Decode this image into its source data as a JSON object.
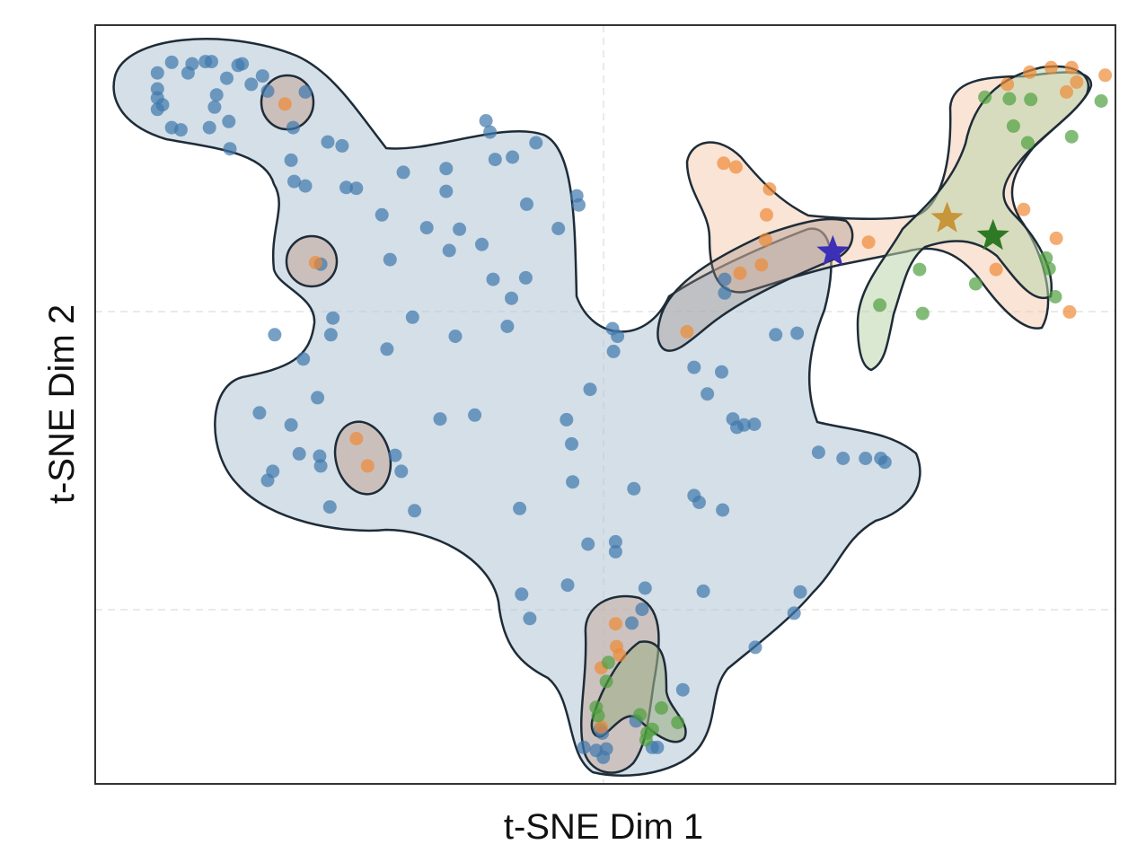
{
  "chart_data": {
    "type": "scatter",
    "title": "",
    "xlabel": "t-SNE Dim 1",
    "ylabel": "t-SNE Dim 2",
    "xlim": [
      0,
      100
    ],
    "ylim": [
      0,
      100
    ],
    "grid": true,
    "grid_style": "dashed-light",
    "legend": "none",
    "marker_opacity": 0.7,
    "colors": {
      "blue": "#3f78ad",
      "orange": "#ee8a38",
      "green": "#4e9f3f",
      "region_blue": "#b7cad9",
      "region_orange": "#f3c4a1",
      "region_green": "#bcd5ac",
      "outline": "#1e2c38"
    },
    "series": [
      {
        "color_key": "blue",
        "points": [
          [
            6.1,
            93.7
          ],
          [
            6.1,
            91.6
          ],
          [
            6.1,
            90.4
          ],
          [
            6.6,
            89.5
          ],
          [
            6.1,
            88.9
          ],
          [
            7.5,
            95.1
          ],
          [
            7.5,
            86.5
          ],
          [
            8.4,
            86.2
          ],
          [
            9.5,
            94.9
          ],
          [
            9.1,
            93.7
          ],
          [
            10.8,
            95.2
          ],
          [
            11.4,
            95.2
          ],
          [
            11.7,
            89.2
          ],
          [
            11.2,
            86.5
          ],
          [
            11.9,
            90.8
          ],
          [
            12.9,
            93.0
          ],
          [
            13.1,
            87.3
          ],
          [
            13.2,
            83.7
          ],
          [
            14.0,
            94.7
          ],
          [
            14.4,
            94.9
          ],
          [
            15.3,
            92.2
          ],
          [
            16.4,
            93.3
          ],
          [
            16.9,
            91.3
          ],
          [
            19.4,
            86.5
          ],
          [
            20.6,
            91.2
          ],
          [
            19.5,
            79.4
          ],
          [
            19.2,
            82.2
          ],
          [
            20.6,
            78.8
          ],
          [
            22.8,
            84.6
          ],
          [
            24.2,
            84.1
          ],
          [
            24.6,
            78.6
          ],
          [
            25.6,
            78.5
          ],
          [
            28.1,
            75.0
          ],
          [
            30.2,
            80.6
          ],
          [
            34.4,
            81.1
          ],
          [
            34.4,
            78.1
          ],
          [
            32.5,
            73.3
          ],
          [
            35.7,
            73.1
          ],
          [
            34.7,
            70.3
          ],
          [
            37.9,
            71.1
          ],
          [
            39.0,
            66.5
          ],
          [
            40.8,
            64.0
          ],
          [
            28.9,
            69.1
          ],
          [
            22.1,
            68.5
          ],
          [
            31.1,
            61.5
          ],
          [
            35.3,
            59.0
          ],
          [
            42.2,
            66.7
          ],
          [
            40.4,
            60.3
          ],
          [
            23.1,
            59.2
          ],
          [
            28.6,
            57.3
          ],
          [
            17.6,
            59.2
          ],
          [
            20.4,
            56.0
          ],
          [
            21.8,
            50.9
          ],
          [
            19.2,
            47.3
          ],
          [
            22.0,
            43.2
          ],
          [
            22.1,
            41.9
          ],
          [
            16.1,
            48.9
          ],
          [
            20.0,
            43.5
          ],
          [
            17.4,
            41.2
          ],
          [
            16.9,
            40.0
          ],
          [
            33.8,
            48.1
          ],
          [
            37.2,
            48.6
          ],
          [
            29.4,
            43.3
          ],
          [
            30.0,
            41.2
          ],
          [
            23.0,
            36.5
          ],
          [
            31.3,
            36.0
          ],
          [
            41.6,
            36.3
          ],
          [
            46.7,
            44.8
          ],
          [
            46.2,
            48.0
          ],
          [
            48.5,
            52.0
          ],
          [
            50.7,
            60.0
          ],
          [
            51.2,
            59.0
          ],
          [
            50.8,
            57.0
          ],
          [
            46.8,
            39.8
          ],
          [
            52.8,
            38.9
          ],
          [
            51.0,
            31.9
          ],
          [
            51.0,
            30.6
          ],
          [
            48.3,
            31.6
          ],
          [
            46.3,
            26.2
          ],
          [
            41.8,
            25.0
          ],
          [
            42.6,
            21.8
          ],
          [
            53.9,
            25.8
          ],
          [
            53.6,
            23.0
          ],
          [
            52.6,
            21.2
          ],
          [
            58.7,
            54.9
          ],
          [
            61.4,
            54.3
          ],
          [
            60.0,
            51.4
          ],
          [
            62.5,
            48.1
          ],
          [
            62.9,
            47.0
          ],
          [
            63.6,
            47.3
          ],
          [
            64.6,
            47.4
          ],
          [
            58.7,
            38.0
          ],
          [
            59.2,
            37.1
          ],
          [
            61.5,
            36.1
          ],
          [
            59.6,
            25.4
          ],
          [
            64.7,
            18.0
          ],
          [
            69.1,
            25.3
          ],
          [
            68.5,
            22.5
          ],
          [
            66.7,
            59.2
          ],
          [
            68.8,
            59.4
          ],
          [
            70.9,
            43.7
          ],
          [
            73.3,
            42.9
          ],
          [
            75.5,
            42.9
          ],
          [
            77.0,
            42.9
          ],
          [
            77.4,
            42.4
          ],
          [
            57.6,
            12.4
          ],
          [
            55.1,
            4.8
          ],
          [
            54.6,
            4.8
          ],
          [
            49.5,
            7.2
          ],
          [
            49.7,
            6.7
          ],
          [
            49.1,
            4.4
          ],
          [
            50.1,
            4.6
          ],
          [
            49.8,
            3.5
          ],
          [
            53.0,
            8.3
          ],
          [
            47.9,
            4.8
          ],
          [
            38.3,
            87.4
          ],
          [
            43.2,
            84.5
          ],
          [
            38.7,
            85.9
          ],
          [
            39.2,
            82.3
          ],
          [
            40.9,
            82.6
          ],
          [
            42.3,
            76.4
          ],
          [
            47.2,
            77.5
          ],
          [
            47.4,
            76.3
          ],
          [
            45.4,
            73.2
          ],
          [
            61.7,
            66.5
          ],
          [
            61.7,
            64.7
          ],
          [
            23.3,
            61.4
          ]
        ]
      },
      {
        "color_key": "orange",
        "points": [
          [
            18.6,
            89.6
          ],
          [
            21.6,
            68.7
          ],
          [
            25.6,
            45.5
          ],
          [
            26.7,
            41.9
          ],
          [
            61.6,
            81.8
          ],
          [
            62.8,
            81.3
          ],
          [
            66.1,
            78.4
          ],
          [
            65.8,
            75.0
          ],
          [
            65.7,
            71.7
          ],
          [
            65.3,
            68.4
          ],
          [
            63.2,
            67.3
          ],
          [
            58.0,
            59.6
          ],
          [
            75.8,
            71.4
          ],
          [
            94.2,
            71.9
          ],
          [
            95.5,
            62.2
          ],
          [
            89.4,
            92.2
          ],
          [
            91.6,
            93.8
          ],
          [
            93.7,
            94.4
          ],
          [
            95.2,
            91.2
          ],
          [
            96.2,
            92.5
          ],
          [
            99.0,
            93.4
          ],
          [
            95.7,
            94.4
          ],
          [
            91.0,
            75.7
          ],
          [
            88.3,
            67.8
          ],
          [
            51.0,
            21.1
          ],
          [
            51.1,
            18.1
          ],
          [
            51.4,
            17.0
          ],
          [
            49.6,
            15.3
          ],
          [
            49.6,
            7.5
          ]
        ]
      },
      {
        "color_key": "green",
        "points": [
          [
            87.2,
            90.5
          ],
          [
            89.6,
            90.3
          ],
          [
            90.0,
            86.7
          ],
          [
            91.4,
            84.5
          ],
          [
            91.7,
            90.2
          ],
          [
            98.6,
            90.0
          ],
          [
            95.7,
            85.3
          ],
          [
            93.2,
            69.3
          ],
          [
            93.5,
            67.9
          ],
          [
            94.1,
            64.2
          ],
          [
            81.1,
            62.0
          ],
          [
            86.3,
            65.9
          ],
          [
            80.8,
            67.8
          ],
          [
            76.9,
            63.1
          ],
          [
            50.3,
            16.0
          ],
          [
            50.1,
            13.5
          ],
          [
            49.1,
            10.1
          ],
          [
            49.3,
            9.0
          ],
          [
            53.4,
            9.1
          ],
          [
            54.1,
            6.7
          ],
          [
            54.6,
            7.2
          ],
          [
            54.0,
            5.8
          ],
          [
            57.1,
            8.1
          ],
          [
            55.5,
            10.0
          ]
        ]
      }
    ],
    "markers": [
      {
        "shape": "star",
        "x": 72.3,
        "y": 70.1,
        "color": "#3c2fb8"
      },
      {
        "shape": "star",
        "x": 83.5,
        "y": 74.5,
        "color": "#c7953a"
      },
      {
        "shape": "star",
        "x": 88.0,
        "y": 72.2,
        "color": "#2e7a24"
      }
    ]
  }
}
